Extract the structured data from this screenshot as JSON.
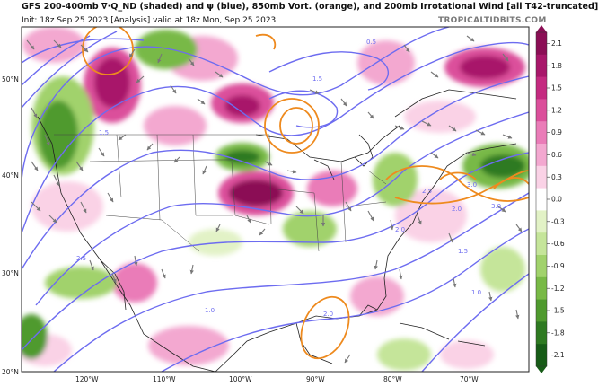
{
  "header": {
    "title": "GFS 200-400mb ∇·Q_ND (shaded) and ψ (blue), 850mb Vort. (orange), and 200mb Irrotational Wind [all T42-truncated]",
    "info": "Init: 18z Sep 25 2023   [Analysis]   valid at 18z Mon, Sep 25 2023",
    "credit": "TROPICALTIDBITS.COM"
  },
  "map": {
    "lat_labels": [
      "50°N",
      "40°N",
      "30°N",
      "20°N"
    ],
    "lon_labels": [
      "120°W",
      "110°W",
      "100°W",
      "90°W",
      "80°W",
      "70°W"
    ],
    "contour_labels": [
      "0.5",
      "1.5",
      "2.0",
      "2.0",
      "3.0",
      "2.5",
      "1.5",
      "1.0",
      "1.0",
      "1.5",
      "3.0",
      "2.5",
      "2.0"
    ]
  },
  "colorbar": {
    "ticks": [
      "2.1",
      "1.8",
      "1.5",
      "1.2",
      "0.9",
      "0.6",
      "0.3",
      "0.0",
      "-0.3",
      "-0.6",
      "-0.9",
      "-1.2",
      "-1.5",
      "-1.8",
      "-2.1"
    ],
    "colors": [
      "#8b0e55",
      "#a8176a",
      "#c42a80",
      "#db4f9b",
      "#ea7cb8",
      "#f3a8d0",
      "#fad2e6",
      "#ffffff",
      "#e2f2c6",
      "#c5e59a",
      "#a1d26c",
      "#78b946",
      "#4f9a2e",
      "#2e7a21",
      "#175c17"
    ]
  },
  "colors": {
    "streamfunction": "#6d6cf0",
    "vorticity": "#ee8a1e"
  }
}
